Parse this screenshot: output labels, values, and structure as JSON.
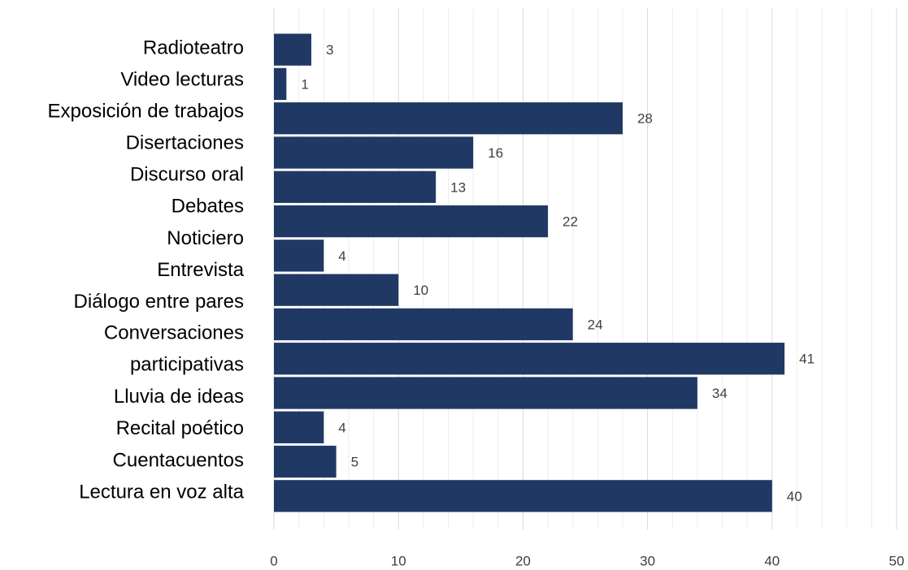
{
  "chart_data": {
    "type": "barh",
    "categories": [
      "Radioteatro",
      "Video lecturas",
      "Exposición de trabajos",
      "Disertaciones",
      "Discurso oral",
      "Debates",
      "Noticiero",
      "Entrevista",
      "Diálogo entre pares",
      "Conversaciones\nparticipativas",
      "Lluvia de ideas",
      "Recital poético",
      "Cuentacuentos",
      "Lectura en voz alta"
    ],
    "values": [
      3,
      1,
      28,
      16,
      13,
      22,
      4,
      10,
      24,
      41,
      34,
      4,
      5,
      40
    ],
    "color": "#203864",
    "xlim": [
      0,
      50
    ],
    "xticks": [
      0,
      10,
      20,
      30,
      40,
      50
    ],
    "xminorticks": [
      2,
      4,
      6,
      8,
      12,
      14,
      16,
      18,
      22,
      24,
      26,
      28,
      32,
      34,
      36,
      38,
      42,
      44,
      46,
      48
    ],
    "grid": true
  }
}
